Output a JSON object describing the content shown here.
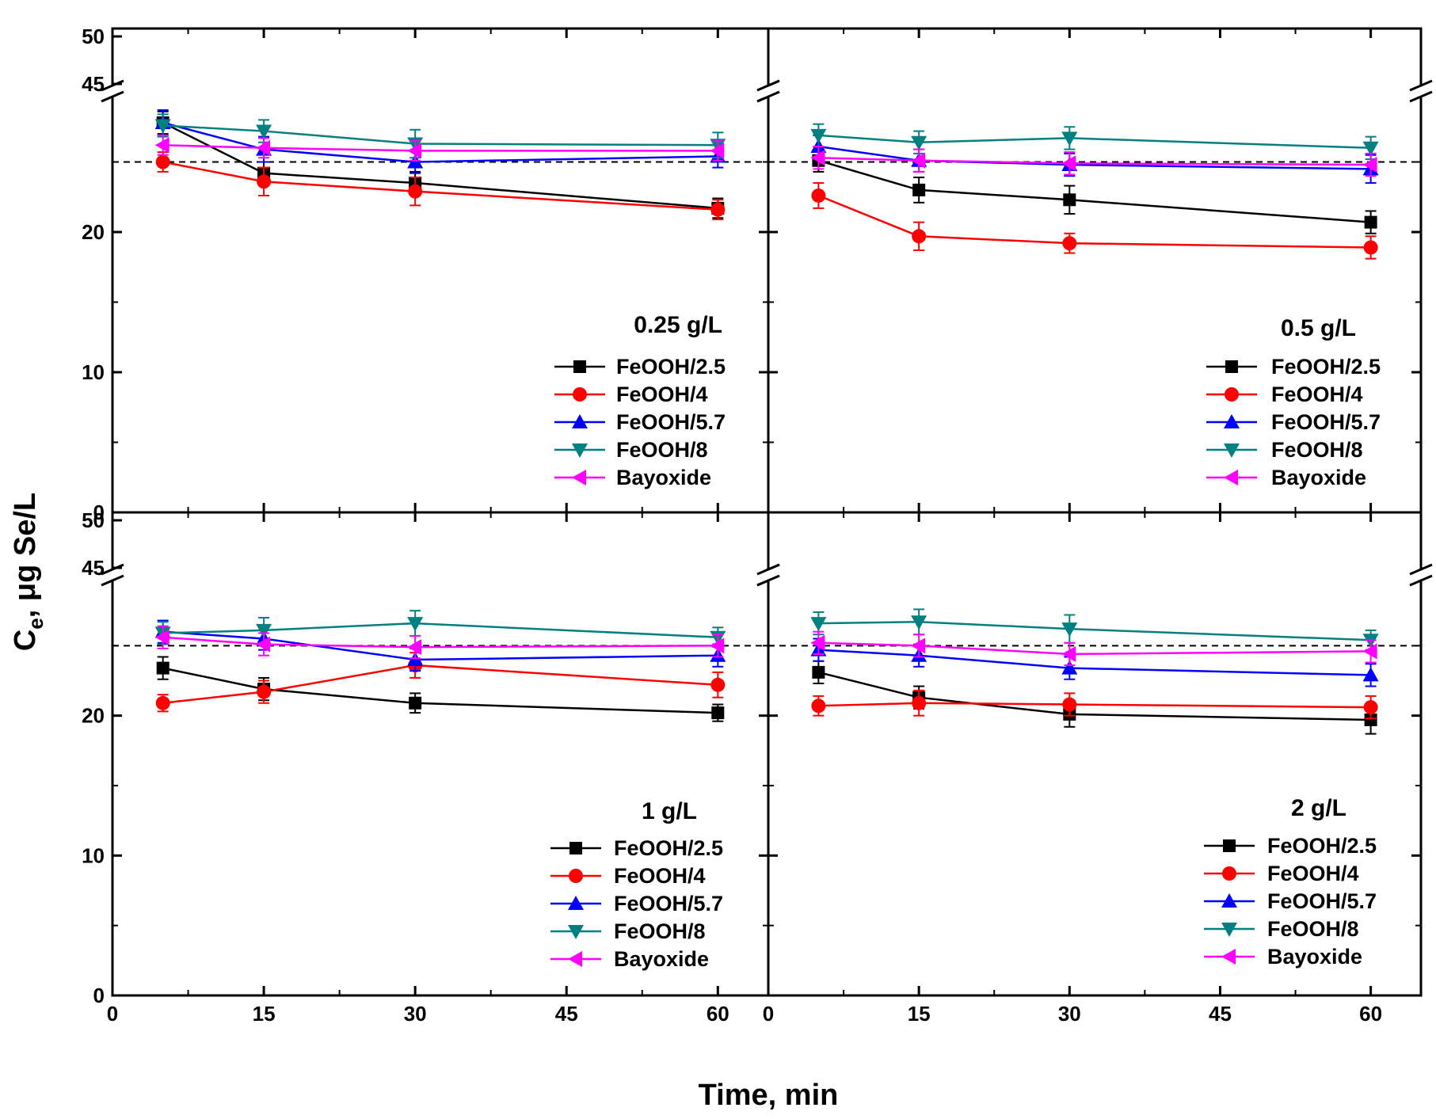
{
  "figure": {
    "xlabel": "Time, min",
    "ylabel_main": "C",
    "ylabel_sub": "e",
    "ylabel_rest": ", μg Se/L"
  },
  "chart_data": [
    {
      "type": "line",
      "title": "0.25 g/L",
      "x_ticks": [
        0,
        15,
        30,
        45,
        60
      ],
      "y_ticks": [
        0,
        10,
        20
      ],
      "y_break_ticks": [
        45,
        50
      ],
      "xlim": [
        0,
        65
      ],
      "ylim": [
        0,
        50
      ],
      "axis_break": [
        30,
        45
      ],
      "reference_line": 25,
      "series": [
        {
          "name": "FeOOH/2.5",
          "color": "#000000",
          "marker": "square",
          "x": [
            5,
            15,
            30,
            60
          ],
          "y": [
            27.8,
            24.2,
            23.5,
            21.7
          ],
          "err": [
            0.8,
            0.8,
            0.8,
            0.7
          ]
        },
        {
          "name": "FeOOH/4",
          "color": "#ff0000",
          "marker": "circle",
          "x": [
            5,
            15,
            30,
            60
          ],
          "y": [
            25.0,
            23.6,
            22.9,
            21.6
          ],
          "err": [
            0.7,
            1.0,
            1.0,
            0.7
          ]
        },
        {
          "name": "FeOOH/5.7",
          "color": "#0000ff",
          "marker": "triangle-up",
          "x": [
            5,
            15,
            30,
            60
          ],
          "y": [
            27.8,
            25.9,
            25.0,
            25.4
          ],
          "err": [
            0.9,
            0.9,
            0.8,
            0.8
          ]
        },
        {
          "name": "FeOOH/8",
          "color": "#008080",
          "marker": "triangle-down",
          "x": [
            5,
            15,
            30,
            60
          ],
          "y": [
            27.6,
            27.2,
            26.3,
            26.2
          ],
          "err": [
            0.8,
            0.8,
            1.0,
            0.9
          ]
        },
        {
          "name": "Bayoxide",
          "color": "#ff00ff",
          "marker": "triangle-left",
          "x": [
            5,
            15,
            30,
            60
          ],
          "y": [
            26.2,
            26.0,
            25.8,
            25.8
          ],
          "err": [
            0.7,
            0.7,
            0.7,
            0.7
          ]
        }
      ]
    },
    {
      "type": "line",
      "title": "0.5 g/L",
      "x_ticks": [
        0,
        15,
        30,
        45,
        60
      ],
      "y_ticks": [],
      "y_break_ticks": [],
      "xlim": [
        0,
        65
      ],
      "ylim": [
        0,
        50
      ],
      "axis_break": [
        30,
        45
      ],
      "reference_line": 25,
      "series": [
        {
          "name": "FeOOH/2.5",
          "color": "#000000",
          "marker": "square",
          "x": [
            5,
            15,
            30,
            60
          ],
          "y": [
            25.1,
            23.0,
            22.3,
            20.7
          ],
          "err": [
            0.8,
            0.9,
            1.0,
            0.8
          ]
        },
        {
          "name": "FeOOH/4",
          "color": "#ff0000",
          "marker": "circle",
          "x": [
            5,
            15,
            30,
            60
          ],
          "y": [
            22.6,
            19.7,
            19.2,
            18.9
          ],
          "err": [
            0.9,
            1.0,
            0.7,
            0.8
          ]
        },
        {
          "name": "FeOOH/5.7",
          "color": "#0000ff",
          "marker": "triangle-up",
          "x": [
            5,
            15,
            30,
            60
          ],
          "y": [
            26.1,
            25.1,
            24.8,
            24.5
          ],
          "err": [
            0.8,
            0.8,
            0.8,
            1.0
          ]
        },
        {
          "name": "FeOOH/8",
          "color": "#008080",
          "marker": "triangle-down",
          "x": [
            5,
            15,
            30,
            60
          ],
          "y": [
            26.9,
            26.4,
            26.7,
            26.0
          ],
          "err": [
            0.8,
            0.8,
            0.8,
            0.8
          ]
        },
        {
          "name": "Bayoxide",
          "color": "#ff00ff",
          "marker": "triangle-left",
          "x": [
            5,
            15,
            30,
            60
          ],
          "y": [
            25.3,
            25.1,
            24.9,
            24.8
          ],
          "err": [
            0.8,
            0.8,
            0.8,
            0.8
          ]
        }
      ]
    },
    {
      "type": "line",
      "title": "1 g/L",
      "x_ticks": [
        0,
        15,
        30,
        45,
        60
      ],
      "y_ticks": [
        0,
        10,
        20
      ],
      "y_break_ticks": [
        45,
        50
      ],
      "xlim": [
        0,
        65
      ],
      "ylim": [
        0,
        50
      ],
      "axis_break": [
        30,
        45
      ],
      "reference_line": 25,
      "series": [
        {
          "name": "FeOOH/2.5",
          "color": "#000000",
          "marker": "square",
          "x": [
            5,
            15,
            30,
            60
          ],
          "y": [
            23.4,
            21.9,
            20.9,
            20.2
          ],
          "err": [
            0.8,
            0.8,
            0.7,
            0.6
          ]
        },
        {
          "name": "FeOOH/4",
          "color": "#ff0000",
          "marker": "circle",
          "x": [
            5,
            15,
            30,
            60
          ],
          "y": [
            20.9,
            21.7,
            23.6,
            22.2
          ],
          "err": [
            0.6,
            0.8,
            0.9,
            0.9
          ]
        },
        {
          "name": "FeOOH/5.7",
          "color": "#0000ff",
          "marker": "triangle-up",
          "x": [
            5,
            15,
            30,
            60
          ],
          "y": [
            26.0,
            25.5,
            24.0,
            24.3
          ],
          "err": [
            0.8,
            0.8,
            0.8,
            0.8
          ]
        },
        {
          "name": "FeOOH/8",
          "color": "#008080",
          "marker": "triangle-down",
          "x": [
            5,
            15,
            30,
            60
          ],
          "y": [
            25.9,
            26.1,
            26.6,
            25.6
          ],
          "err": [
            0.8,
            0.9,
            0.9,
            0.7
          ]
        },
        {
          "name": "Bayoxide",
          "color": "#ff00ff",
          "marker": "triangle-left",
          "x": [
            5,
            15,
            30,
            60
          ],
          "y": [
            25.6,
            25.1,
            24.9,
            25.0
          ],
          "err": [
            0.8,
            0.8,
            0.8,
            0.8
          ]
        }
      ]
    },
    {
      "type": "line",
      "title": "2 g/L",
      "x_ticks": [
        0,
        15,
        30,
        45,
        60
      ],
      "y_ticks": [],
      "y_break_ticks": [],
      "xlim": [
        0,
        65
      ],
      "ylim": [
        0,
        50
      ],
      "axis_break": [
        30,
        45
      ],
      "reference_line": 25,
      "series": [
        {
          "name": "FeOOH/2.5",
          "color": "#000000",
          "marker": "square",
          "x": [
            5,
            15,
            30,
            60
          ],
          "y": [
            23.1,
            21.3,
            20.1,
            19.7
          ],
          "err": [
            0.8,
            0.8,
            0.9,
            1.0
          ]
        },
        {
          "name": "FeOOH/4",
          "color": "#ff0000",
          "marker": "circle",
          "x": [
            5,
            15,
            30,
            60
          ],
          "y": [
            20.7,
            20.9,
            20.8,
            20.6
          ],
          "err": [
            0.7,
            0.9,
            0.8,
            0.8
          ]
        },
        {
          "name": "FeOOH/5.7",
          "color": "#0000ff",
          "marker": "triangle-up",
          "x": [
            5,
            15,
            30,
            60
          ],
          "y": [
            24.7,
            24.3,
            23.4,
            22.9
          ],
          "err": [
            0.8,
            0.8,
            0.8,
            0.8
          ]
        },
        {
          "name": "FeOOH/8",
          "color": "#008080",
          "marker": "triangle-down",
          "x": [
            5,
            15,
            30,
            60
          ],
          "y": [
            26.6,
            26.7,
            26.2,
            25.4
          ],
          "err": [
            0.8,
            0.9,
            1.0,
            0.7
          ]
        },
        {
          "name": "Bayoxide",
          "color": "#ff00ff",
          "marker": "triangle-left",
          "x": [
            5,
            15,
            30,
            60
          ],
          "y": [
            25.2,
            25.0,
            24.4,
            24.6
          ],
          "err": [
            0.8,
            0.8,
            0.8,
            0.8
          ]
        }
      ]
    }
  ]
}
